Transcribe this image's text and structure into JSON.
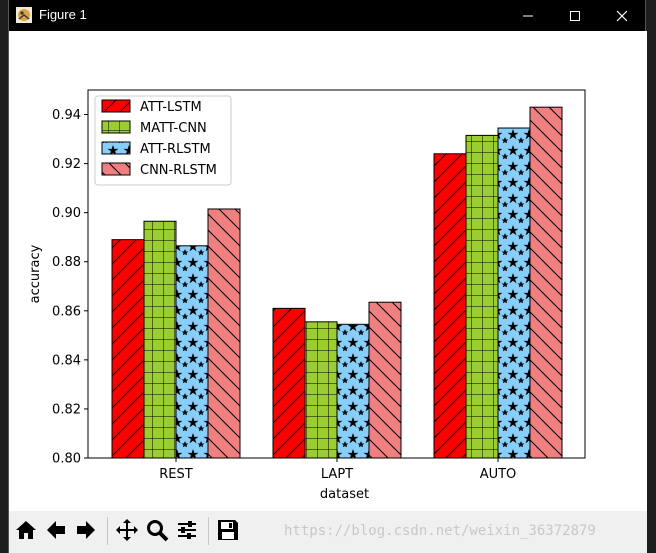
{
  "window": {
    "title": "Figure 1"
  },
  "toolbar": {
    "buttons": [
      "home-icon",
      "back-arrow-icon",
      "forward-arrow-icon",
      "pan-move-icon",
      "zoom-magnifier-icon",
      "subplots-sliders-icon",
      "save-floppy-icon"
    ]
  },
  "watermark": "https://blog.csdn.net/weixin_36372879",
  "colors": {
    "ATT-LSTM": "#ff0000",
    "MATT-CNN": "#9acd32",
    "ATT-RLSTM": "#87cefa",
    "CNN-RLSTM": "#f08080"
  },
  "chart_data": {
    "type": "bar",
    "xlabel": "dataset",
    "ylabel": "accuracy",
    "categories": [
      "REST",
      "LAPT",
      "AUTO"
    ],
    "ylim": [
      0.8,
      0.95
    ],
    "yticks": [
      "0.80",
      "0.82",
      "0.84",
      "0.86",
      "0.88",
      "0.90",
      "0.92",
      "0.94"
    ],
    "legend_position": "top-left",
    "series": [
      {
        "name": "ATT-LSTM",
        "values": [
          0.889,
          0.861,
          0.924
        ],
        "color": "#ff0000",
        "hatch": "diagonal-forward"
      },
      {
        "name": "MATT-CNN",
        "values": [
          0.8965,
          0.8555,
          0.9315
        ],
        "color": "#9acd32",
        "hatch": "grid"
      },
      {
        "name": "ATT-RLSTM",
        "values": [
          0.8865,
          0.8545,
          0.9345
        ],
        "color": "#87cefa",
        "hatch": "stars"
      },
      {
        "name": "CNN-RLSTM",
        "values": [
          0.9015,
          0.8635,
          0.943
        ],
        "color": "#f08080",
        "hatch": "diagonal-back"
      }
    ]
  }
}
